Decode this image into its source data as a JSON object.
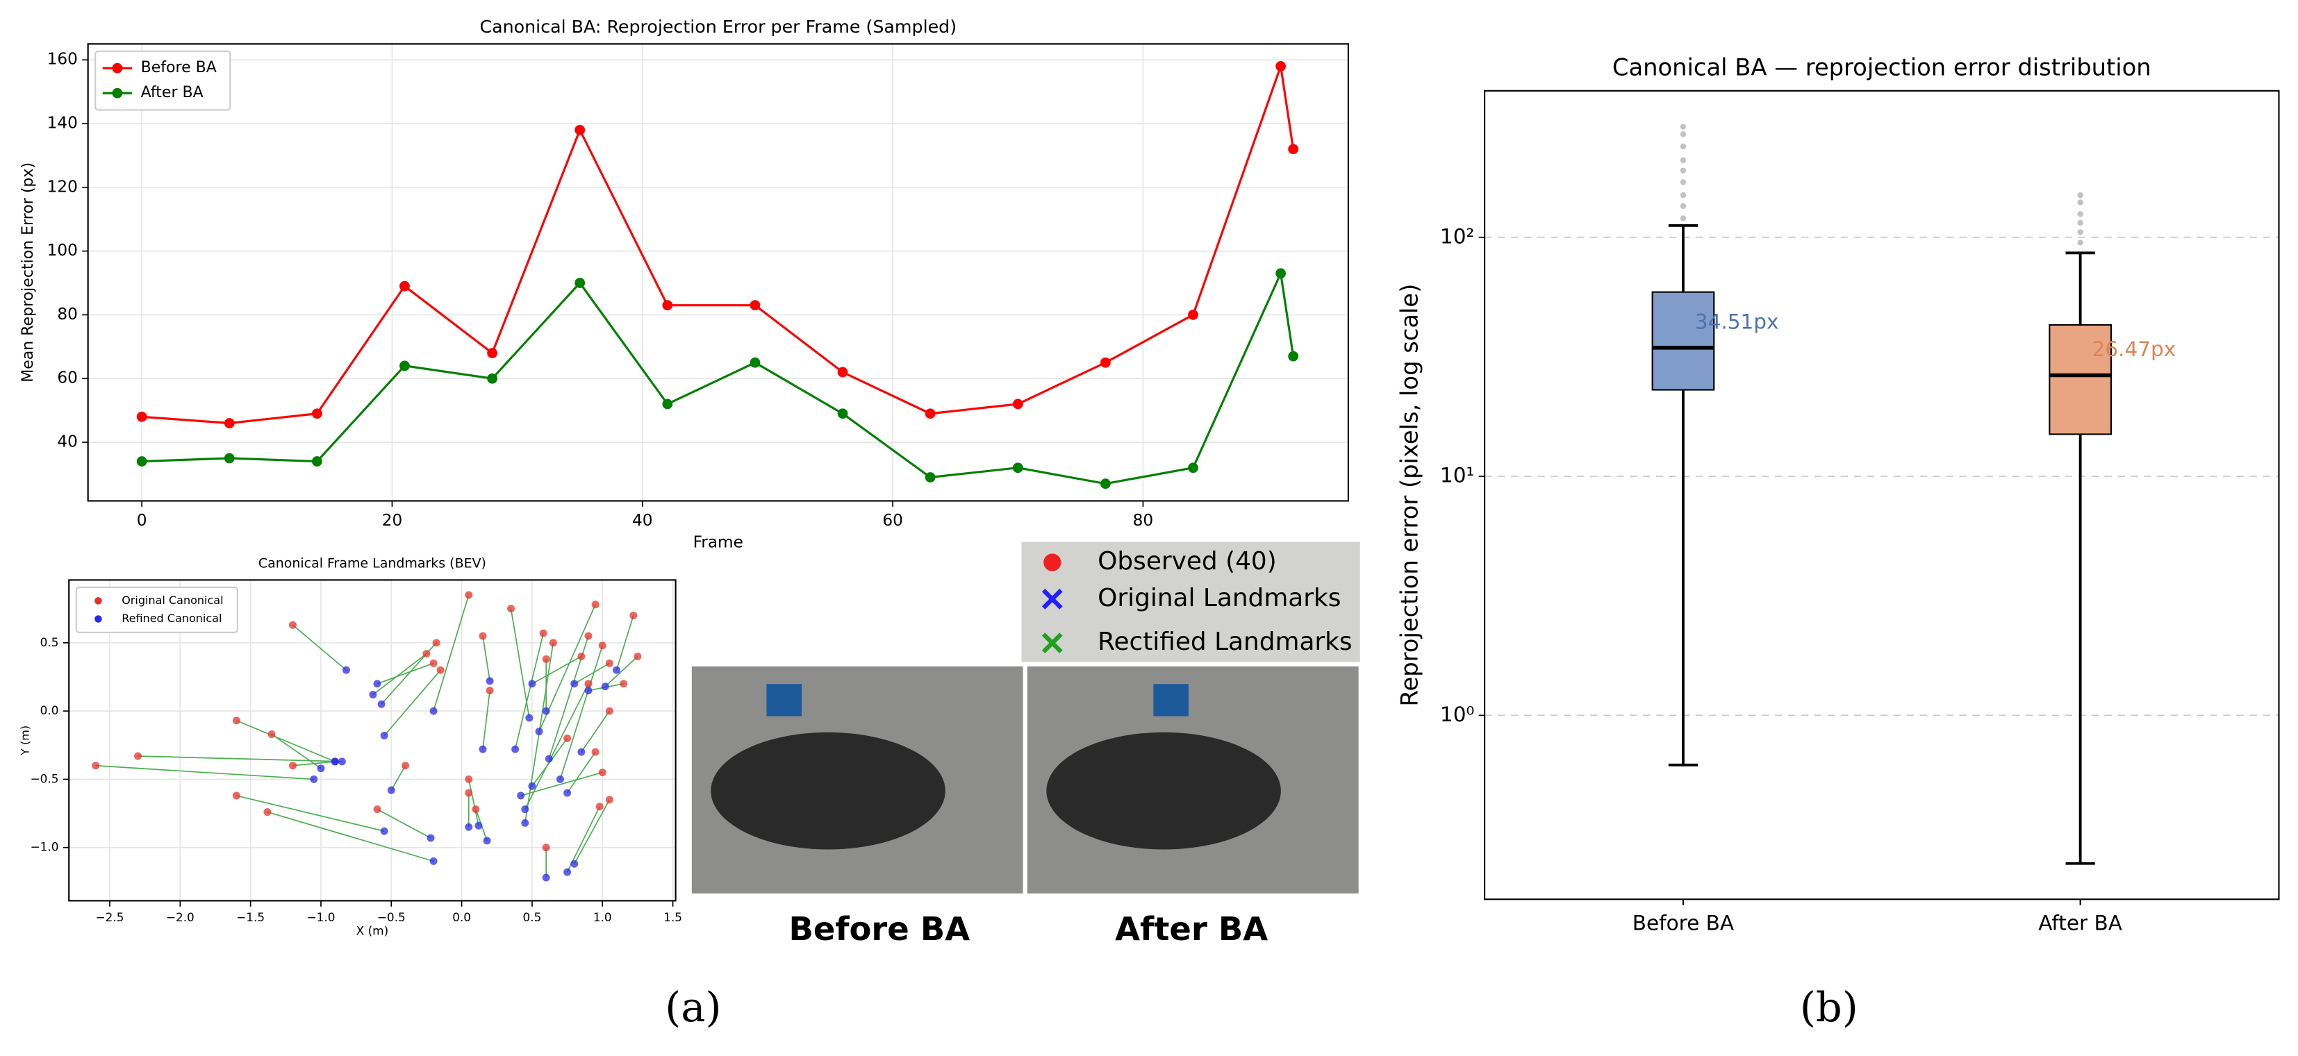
{
  "chart_data": [
    {
      "type": "line",
      "title": "Canonical BA: Reprojection Error per Frame (Sampled)",
      "xlabel": "Frame",
      "ylabel": "Mean Reprojection Error (px)",
      "x": [
        0,
        7,
        14,
        21,
        28,
        35,
        42,
        49,
        56,
        63,
        70,
        77,
        84,
        91,
        92
      ],
      "series": [
        {
          "name": "Before BA",
          "color": "#ff0000",
          "values": [
            48,
            46,
            49,
            89,
            68,
            138,
            83,
            83,
            62,
            49,
            52,
            65,
            80,
            158,
            132
          ]
        },
        {
          "name": "After BA",
          "color": "#008000",
          "values": [
            34,
            35,
            34,
            64,
            60,
            90,
            52,
            65,
            49,
            29,
            32,
            27,
            32,
            93,
            67
          ]
        }
      ],
      "xlim": [
        -4.3,
        96.4
      ],
      "ylim": [
        21.6,
        165
      ],
      "xticks": [
        0,
        20,
        40,
        60,
        80
      ],
      "yticks": [
        40,
        60,
        80,
        100,
        120,
        140,
        160
      ],
      "grid": true,
      "legend": "upper left"
    },
    {
      "type": "scatter",
      "title": "Canonical Frame Landmarks (BEV)",
      "xlabel": "X (m)",
      "ylabel": "Y (m)",
      "series": [
        {
          "name": "Original Canonical",
          "color": "#e8302a",
          "x": [
            -2.6,
            -2.3,
            -1.6,
            -1.35,
            -1.2,
            -1.6,
            -1.38,
            -1.2,
            -0.6,
            -0.4,
            -0.2,
            -0.25,
            0.05,
            -0.18,
            -0.15,
            0.05,
            0.15,
            0.2,
            0.05,
            0.1,
            0.35,
            0.58,
            0.65,
            0.6,
            0.85,
            0.95,
            0.9,
            1.0,
            1.05,
            1.15,
            1.22,
            1.25,
            0.95,
            1.0,
            0.98,
            1.05,
            0.9,
            0.6,
            1.05,
            0.75
          ],
          "y": [
            -0.4,
            -0.33,
            -0.07,
            -0.17,
            -0.4,
            -0.62,
            -0.74,
            0.63,
            -0.72,
            -0.4,
            0.35,
            0.42,
            0.85,
            0.5,
            0.3,
            -0.5,
            0.55,
            0.15,
            -0.6,
            -0.72,
            0.75,
            0.57,
            0.5,
            -1.0,
            0.4,
            0.78,
            0.55,
            0.48,
            0.35,
            0.2,
            0.7,
            0.4,
            -0.3,
            -0.45,
            -0.7,
            -0.65,
            0.2,
            0.38,
            0.0,
            -0.2
          ]
        },
        {
          "name": "Refined Canonical",
          "color": "#2a2ae8",
          "x": [
            -1.05,
            -0.85,
            -0.9,
            -1.0,
            -0.9,
            -0.55,
            -0.2,
            -0.82,
            -0.22,
            -0.5,
            -0.6,
            -0.63,
            -0.2,
            -0.57,
            -0.55,
            0.12,
            0.2,
            0.15,
            0.05,
            0.18,
            0.48,
            0.38,
            0.45,
            0.6,
            0.5,
            0.55,
            0.62,
            0.7,
            0.8,
            0.9,
            1.1,
            1.02,
            0.75,
            0.42,
            0.75,
            0.8,
            0.45,
            0.6,
            0.85,
            0.5
          ],
          "y": [
            -0.5,
            -0.37,
            -0.37,
            -0.42,
            -0.37,
            -0.88,
            -1.1,
            0.3,
            -0.93,
            -0.58,
            0.2,
            0.12,
            0.0,
            0.05,
            -0.18,
            -0.84,
            0.22,
            -0.28,
            -0.85,
            -0.95,
            -0.05,
            -0.28,
            -0.82,
            -1.22,
            0.2,
            -0.15,
            -0.35,
            -0.5,
            0.2,
            0.15,
            0.3,
            0.18,
            -0.6,
            -0.62,
            -1.18,
            -1.12,
            -0.72,
            0.0,
            -0.3,
            -0.55
          ]
        }
      ],
      "links": true,
      "link_color": "#4caf50",
      "xlim": [
        -2.79,
        1.52
      ],
      "ylim": [
        -1.39,
        0.96
      ],
      "xticks": [
        {
          "value": -2.5,
          "label": "−2.5"
        },
        {
          "value": -2.0,
          "label": "−2.0"
        },
        {
          "value": -1.5,
          "label": "−1.5"
        },
        {
          "value": -1.0,
          "label": "−1.0"
        },
        {
          "value": -0.5,
          "label": "−0.5"
        },
        {
          "value": 0,
          "label": "0.0"
        },
        0.5,
        {
          "value": 1,
          "label": "1.0"
        },
        1.5
      ],
      "yticks": [
        0.5,
        {
          "value": 0,
          "label": "0.0"
        },
        {
          "value": -0.5,
          "label": "−0.5"
        },
        {
          "value": -1.0,
          "label": "−1.0"
        }
      ],
      "grid": true,
      "legend": "upper left"
    },
    {
      "type": "box",
      "title": "Canonical BA — reprojection error distribution",
      "ylabel": "Reprojection error (pixels, log scale)",
      "categories": [
        "Before BA",
        "After BA"
      ],
      "colors": [
        "#7f9ccb",
        "#e9a582"
      ],
      "label_colors": [
        "#4c72b0",
        "#dd8452"
      ],
      "stats": [
        {
          "whislo": 0.62,
          "q1": 23,
          "med": 34.51,
          "q3": 59,
          "whishi": 112,
          "fliers": [
            120,
            135,
            150,
            170,
            190,
            210,
            240,
            270,
            290
          ]
        },
        {
          "whislo": 0.24,
          "q1": 15,
          "med": 26.47,
          "q3": 43,
          "whishi": 86,
          "fliers": [
            95,
            105,
            115,
            125,
            140,
            150
          ]
        }
      ],
      "value_labels": [
        "34.51px",
        "26.47px"
      ],
      "log_y": true,
      "ylim": [
        0.17,
        410
      ],
      "yticks": [
        {
          "value": 1,
          "label": "10⁰"
        },
        {
          "value": 10,
          "label": "10¹"
        },
        {
          "value": 100,
          "label": "10²"
        }
      ],
      "grid": "y"
    }
  ],
  "figure": {
    "legend": [
      "Observed (40)",
      "Original Landmarks",
      "Rectified Landmarks"
    ],
    "captions": [
      "Before BA",
      "After BA"
    ],
    "panel_labels": [
      "(a)",
      "(b)"
    ]
  }
}
